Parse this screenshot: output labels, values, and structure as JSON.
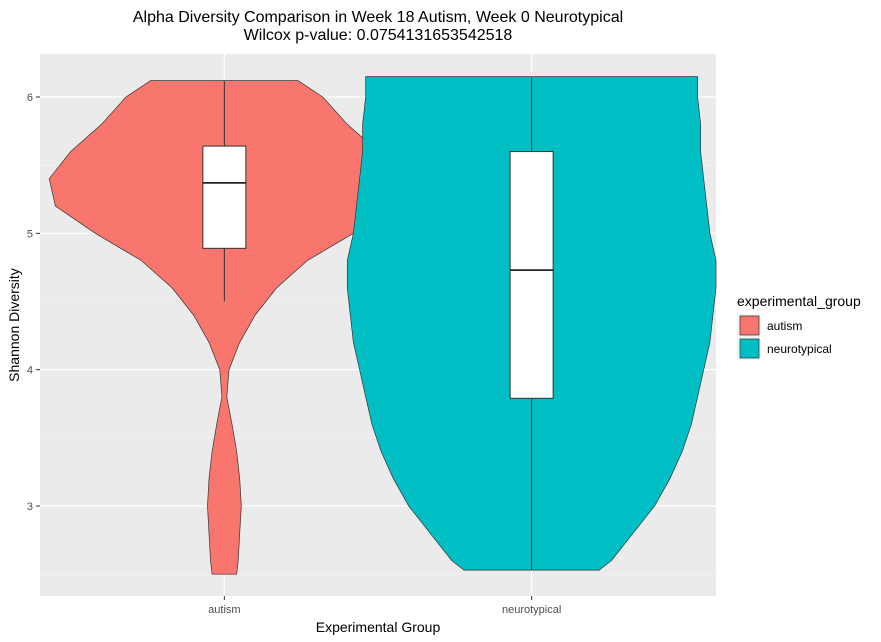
{
  "chart_data": {
    "type": "violin",
    "title": "Alpha Diversity Comparison in Week 18 Autism, Week 0 Neurotypical",
    "subtitle": "Wilcox p-value: 0.0754131653542518",
    "xlabel": "Experimental Group",
    "ylabel": "Shannon Diversity",
    "ylim": [
      2.35,
      6.3
    ],
    "yticks": [
      "3",
      "4",
      "5",
      "6"
    ],
    "categories": [
      "autism",
      "neurotypical"
    ],
    "grid": true,
    "legend": {
      "title": "experimental_group",
      "position": "right",
      "entries": [
        "autism",
        "neurotypical"
      ]
    },
    "series": [
      {
        "name": "autism",
        "color": "#F8766D",
        "violin": {
          "y": [
            2.5,
            2.6,
            2.8,
            3.0,
            3.2,
            3.4,
            3.6,
            3.8,
            4.0,
            4.2,
            4.4,
            4.6,
            4.8,
            5.0,
            5.2,
            5.4,
            5.6,
            5.8,
            6.0,
            6.12
          ],
          "halfwidth": [
            0.04,
            0.045,
            0.05,
            0.055,
            0.05,
            0.04,
            0.025,
            0.008,
            0.015,
            0.05,
            0.1,
            0.17,
            0.27,
            0.42,
            0.55,
            0.57,
            0.5,
            0.4,
            0.32,
            0.24
          ]
        },
        "box": {
          "lower_whisker": 4.5,
          "q1": 4.89,
          "median": 5.37,
          "q3": 5.64,
          "upper_whisker": 6.12
        }
      },
      {
        "name": "neurotypical",
        "color": "#00BFC4",
        "violin": {
          "y": [
            2.53,
            2.6,
            2.8,
            3.0,
            3.2,
            3.4,
            3.6,
            3.8,
            4.0,
            4.2,
            4.4,
            4.6,
            4.8,
            5.0,
            5.2,
            5.4,
            5.6,
            5.8,
            6.0,
            6.15
          ],
          "halfwidth": [
            0.22,
            0.26,
            0.33,
            0.4,
            0.45,
            0.49,
            0.52,
            0.54,
            0.56,
            0.58,
            0.59,
            0.6,
            0.6,
            0.58,
            0.57,
            0.56,
            0.55,
            0.55,
            0.54,
            0.54
          ]
        },
        "box": {
          "lower_whisker": 2.53,
          "q1": 3.79,
          "median": 4.73,
          "q3": 5.6,
          "upper_whisker": 6.15
        }
      }
    ]
  }
}
